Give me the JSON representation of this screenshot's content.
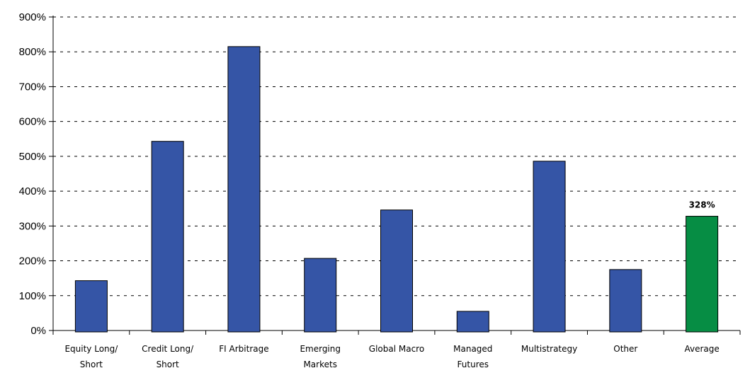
{
  "chart_data": {
    "type": "bar",
    "categories": [
      [
        "Equity Long/",
        "Short"
      ],
      [
        "Credit Long/",
        "Short"
      ],
      [
        "FI Arbitrage"
      ],
      [
        "Emerging",
        "Markets"
      ],
      [
        "Global Macro"
      ],
      [
        "Managed",
        "Futures"
      ],
      [
        "Multistrategy"
      ],
      [
        "Other"
      ],
      [
        "Average"
      ]
    ],
    "values": [
      143,
      543,
      815,
      207,
      346,
      55,
      486,
      175,
      328
    ],
    "bar_colors": [
      "#3555a6",
      "#3555a6",
      "#3555a6",
      "#3555a6",
      "#3555a6",
      "#3555a6",
      "#3555a6",
      "#3555a6",
      "#068d44"
    ],
    "data_labels": [
      "",
      "",
      "",
      "",
      "",
      "",
      "",
      "",
      "328%"
    ],
    "yticks": [
      "0%",
      "100%",
      "200%",
      "300%",
      "400%",
      "500%",
      "600%",
      "700%",
      "800%",
      "900%"
    ],
    "ylim": [
      0,
      900
    ],
    "title": "",
    "xlabel": "",
    "ylabel": "",
    "grid": true,
    "legend": "none"
  }
}
